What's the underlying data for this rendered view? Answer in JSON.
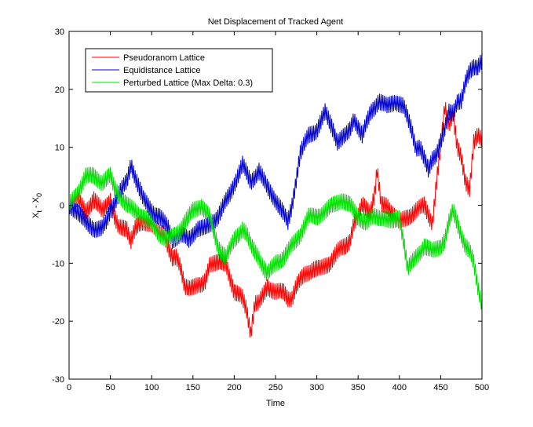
{
  "chart_data": {
    "type": "line",
    "title": "Net Displacement of Tracked Agent",
    "xlabel": "Time",
    "ylabel": {
      "base": "X",
      "sub1": "t",
      "mid": " - X",
      "sub2": "0"
    },
    "xlim": [
      0,
      500
    ],
    "ylim": [
      -30,
      30
    ],
    "xticks": [
      0,
      50,
      100,
      150,
      200,
      250,
      300,
      350,
      400,
      450,
      500
    ],
    "yticks": [
      -30,
      -20,
      -10,
      0,
      10,
      20,
      30
    ],
    "grid": false,
    "legend_position": "top-left",
    "series": [
      {
        "name": "Pseudoranom Lattice",
        "color": "#ff0000",
        "points": [
          [
            0,
            0
          ],
          [
            10,
            1
          ],
          [
            20,
            -1
          ],
          [
            30,
            1
          ],
          [
            40,
            -1
          ],
          [
            50,
            1
          ],
          [
            55,
            -2
          ],
          [
            60,
            -4
          ],
          [
            70,
            -4
          ],
          [
            75,
            -6
          ],
          [
            80,
            -4
          ],
          [
            90,
            -3
          ],
          [
            100,
            -3
          ],
          [
            110,
            -5
          ],
          [
            115,
            -5
          ],
          [
            120,
            -7
          ],
          [
            125,
            -9
          ],
          [
            130,
            -9
          ],
          [
            135,
            -11
          ],
          [
            140,
            -14
          ],
          [
            150,
            -14
          ],
          [
            160,
            -14
          ],
          [
            165,
            -13
          ],
          [
            170,
            -10
          ],
          [
            180,
            -10
          ],
          [
            190,
            -10
          ],
          [
            200,
            -15
          ],
          [
            210,
            -16
          ],
          [
            215,
            -18
          ],
          [
            220,
            -22
          ],
          [
            225,
            -17
          ],
          [
            230,
            -17
          ],
          [
            240,
            -14
          ],
          [
            250,
            -15
          ],
          [
            260,
            -15
          ],
          [
            265,
            -16
          ],
          [
            270,
            -16
          ],
          [
            275,
            -14
          ],
          [
            285,
            -12
          ],
          [
            295,
            -11
          ],
          [
            305,
            -11
          ],
          [
            315,
            -10
          ],
          [
            325,
            -8
          ],
          [
            335,
            -7
          ],
          [
            340,
            -6
          ],
          [
            345,
            -3
          ],
          [
            350,
            -2
          ],
          [
            355,
            0
          ],
          [
            365,
            -1
          ],
          [
            370,
            2
          ],
          [
            373,
            6
          ],
          [
            378,
            0
          ],
          [
            385,
            0
          ],
          [
            390,
            -1
          ],
          [
            395,
            -2
          ],
          [
            400,
            -3
          ],
          [
            410,
            -2
          ],
          [
            420,
            -1
          ],
          [
            430,
            0
          ],
          [
            440,
            -3
          ],
          [
            445,
            4
          ],
          [
            450,
            10
          ],
          [
            455,
            17
          ],
          [
            460,
            14
          ],
          [
            465,
            16
          ],
          [
            470,
            10
          ],
          [
            475,
            8
          ],
          [
            480,
            4
          ],
          [
            485,
            3
          ],
          [
            490,
            11
          ],
          [
            495,
            12
          ],
          [
            500,
            11
          ]
        ]
      },
      {
        "name": "Equidistance Lattice",
        "color": "#0000cc",
        "points": [
          [
            0,
            0
          ],
          [
            10,
            -1
          ],
          [
            20,
            -3
          ],
          [
            30,
            -4
          ],
          [
            40,
            -4
          ],
          [
            45,
            -3
          ],
          [
            50,
            -1
          ],
          [
            60,
            2
          ],
          [
            70,
            4
          ],
          [
            75,
            7
          ],
          [
            80,
            5
          ],
          [
            90,
            1
          ],
          [
            100,
            -1
          ],
          [
            110,
            -2
          ],
          [
            120,
            -4
          ],
          [
            125,
            -6
          ],
          [
            135,
            -5
          ],
          [
            145,
            -6
          ],
          [
            155,
            -4
          ],
          [
            165,
            -4
          ],
          [
            180,
            -2
          ],
          [
            195,
            2
          ],
          [
            210,
            7
          ],
          [
            220,
            4
          ],
          [
            230,
            6
          ],
          [
            240,
            3
          ],
          [
            250,
            1
          ],
          [
            258,
            -1
          ],
          [
            265,
            -3
          ],
          [
            270,
            0
          ],
          [
            280,
            9
          ],
          [
            290,
            12
          ],
          [
            300,
            13
          ],
          [
            310,
            16
          ],
          [
            320,
            13
          ],
          [
            325,
            11
          ],
          [
            335,
            12
          ],
          [
            340,
            13
          ],
          [
            345,
            15
          ],
          [
            355,
            12
          ],
          [
            365,
            16
          ],
          [
            375,
            18
          ],
          [
            385,
            17
          ],
          [
            395,
            18
          ],
          [
            405,
            17
          ],
          [
            410,
            15
          ],
          [
            415,
            13
          ],
          [
            420,
            10
          ],
          [
            425,
            10
          ],
          [
            430,
            8
          ],
          [
            435,
            6
          ],
          [
            440,
            8
          ],
          [
            445,
            9
          ],
          [
            450,
            11
          ],
          [
            455,
            13
          ],
          [
            460,
            16
          ],
          [
            465,
            16
          ],
          [
            470,
            18
          ],
          [
            475,
            18
          ],
          [
            480,
            21
          ],
          [
            485,
            23
          ],
          [
            490,
            24
          ],
          [
            495,
            24
          ],
          [
            500,
            25
          ]
        ]
      },
      {
        "name": "Perturbed Lattice (Max Delta: 0.3)",
        "color": "#00dd00",
        "points": [
          [
            0,
            0
          ],
          [
            10,
            2
          ],
          [
            20,
            5
          ],
          [
            30,
            5
          ],
          [
            40,
            4
          ],
          [
            50,
            5
          ],
          [
            55,
            3
          ],
          [
            60,
            2
          ],
          [
            70,
            0
          ],
          [
            80,
            -1
          ],
          [
            90,
            -2
          ],
          [
            100,
            -3
          ],
          [
            110,
            -5
          ],
          [
            120,
            -6
          ],
          [
            130,
            -5
          ],
          [
            140,
            -3
          ],
          [
            150,
            -1
          ],
          [
            160,
            0
          ],
          [
            170,
            -2
          ],
          [
            180,
            -7
          ],
          [
            190,
            -9
          ],
          [
            200,
            -6
          ],
          [
            210,
            -4
          ],
          [
            215,
            -5
          ],
          [
            220,
            -7
          ],
          [
            230,
            -9
          ],
          [
            240,
            -12
          ],
          [
            245,
            -11
          ],
          [
            250,
            -10
          ],
          [
            260,
            -9
          ],
          [
            270,
            -7
          ],
          [
            280,
            -5
          ],
          [
            290,
            -2
          ],
          [
            300,
            -2
          ],
          [
            310,
            -1
          ],
          [
            320,
            0
          ],
          [
            330,
            1
          ],
          [
            340,
            0
          ],
          [
            350,
            -2
          ],
          [
            360,
            -3
          ],
          [
            370,
            -2
          ],
          [
            380,
            -2
          ],
          [
            390,
            -3
          ],
          [
            400,
            -2
          ],
          [
            405,
            -6
          ],
          [
            410,
            -11
          ],
          [
            415,
            -10
          ],
          [
            420,
            -9
          ],
          [
            425,
            -8
          ],
          [
            430,
            -7
          ],
          [
            440,
            -8
          ],
          [
            450,
            -7
          ],
          [
            455,
            -6
          ],
          [
            460,
            -3
          ],
          [
            465,
            -1
          ],
          [
            470,
            -3
          ],
          [
            475,
            -5
          ],
          [
            480,
            -7
          ],
          [
            485,
            -8
          ],
          [
            490,
            -10
          ],
          [
            495,
            -14
          ],
          [
            500,
            -17
          ]
        ]
      }
    ]
  }
}
